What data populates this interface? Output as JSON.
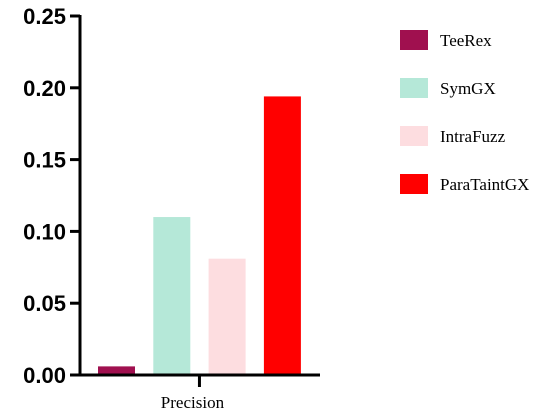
{
  "chart_data": {
    "type": "bar",
    "categories": [
      "Precision"
    ],
    "series": [
      {
        "name": "TeeRex",
        "values": [
          0.006
        ],
        "color": "#A0104F"
      },
      {
        "name": "SymGX",
        "values": [
          0.11
        ],
        "color": "#B5E8D8"
      },
      {
        "name": "IntraFuzz",
        "values": [
          0.081
        ],
        "color": "#FDDDE0"
      },
      {
        "name": "ParaTaintGX",
        "values": [
          0.194
        ],
        "color": "#FF0000"
      }
    ],
    "ylim": [
      0,
      0.25
    ],
    "yticks": [
      "0.00",
      "0.05",
      "0.10",
      "0.15",
      "0.20",
      "0.25"
    ],
    "legend_position": "right",
    "grid": false
  }
}
